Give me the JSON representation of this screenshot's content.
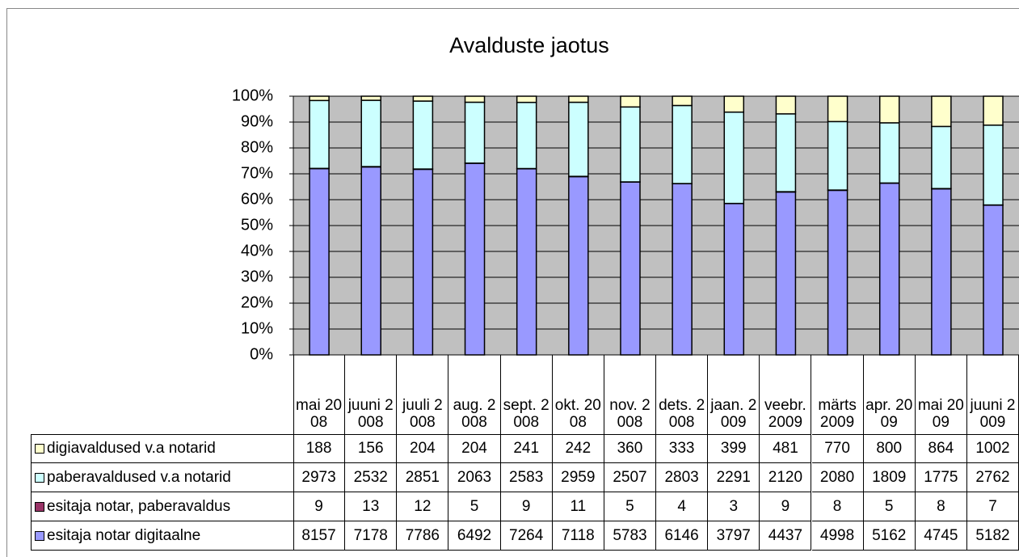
{
  "chart_data": {
    "type": "bar",
    "stacked": "percent",
    "title": "Avalduste jaotus",
    "categories": [
      "mai 2008",
      "juuni 2008",
      "juuli 2008",
      "aug. 2008",
      "sept. 2008",
      "okt. 2008",
      "nov. 2008",
      "dets. 2008",
      "jaan. 2009",
      "veebr. 2009",
      "märts 2009",
      "apr. 2009",
      "mai 2009",
      "juuni 2009"
    ],
    "series": [
      {
        "name": "digiavaldused v.a notarid",
        "color": "#ffffcc",
        "values": [
          188,
          156,
          204,
          204,
          241,
          242,
          360,
          333,
          399,
          481,
          770,
          800,
          864,
          1002
        ]
      },
      {
        "name": "paberavaldused v.a notarid",
        "color": "#ccffff",
        "values": [
          2973,
          2532,
          2851,
          2063,
          2583,
          2959,
          2507,
          2803,
          2291,
          2120,
          2080,
          1809,
          1775,
          2762
        ]
      },
      {
        "name": "esitaja notar, paberavaldus",
        "color": "#993366",
        "values": [
          9,
          13,
          12,
          5,
          9,
          11,
          5,
          4,
          3,
          9,
          8,
          5,
          8,
          7
        ]
      },
      {
        "name": "esitaja notar digitaalne",
        "color": "#9999ff",
        "values": [
          8157,
          7178,
          7786,
          6492,
          7264,
          7118,
          5783,
          6146,
          3797,
          4437,
          4998,
          5162,
          4745,
          5182
        ]
      }
    ],
    "ylim": [
      0,
      100
    ],
    "yticks": [
      {
        "value": 0,
        "label": "0%"
      },
      {
        "value": 10,
        "label": "10%"
      },
      {
        "value": 20,
        "label": "20%"
      },
      {
        "value": 30,
        "label": "30%"
      },
      {
        "value": 40,
        "label": "40%"
      },
      {
        "value": 50,
        "label": "50%"
      },
      {
        "value": 60,
        "label": "60%"
      },
      {
        "value": 70,
        "label": "70%"
      },
      {
        "value": 80,
        "label": "80%"
      },
      {
        "value": 90,
        "label": "90%"
      },
      {
        "value": 100,
        "label": "100%"
      }
    ],
    "grid": true,
    "plot_background": "#c0c0c0"
  }
}
